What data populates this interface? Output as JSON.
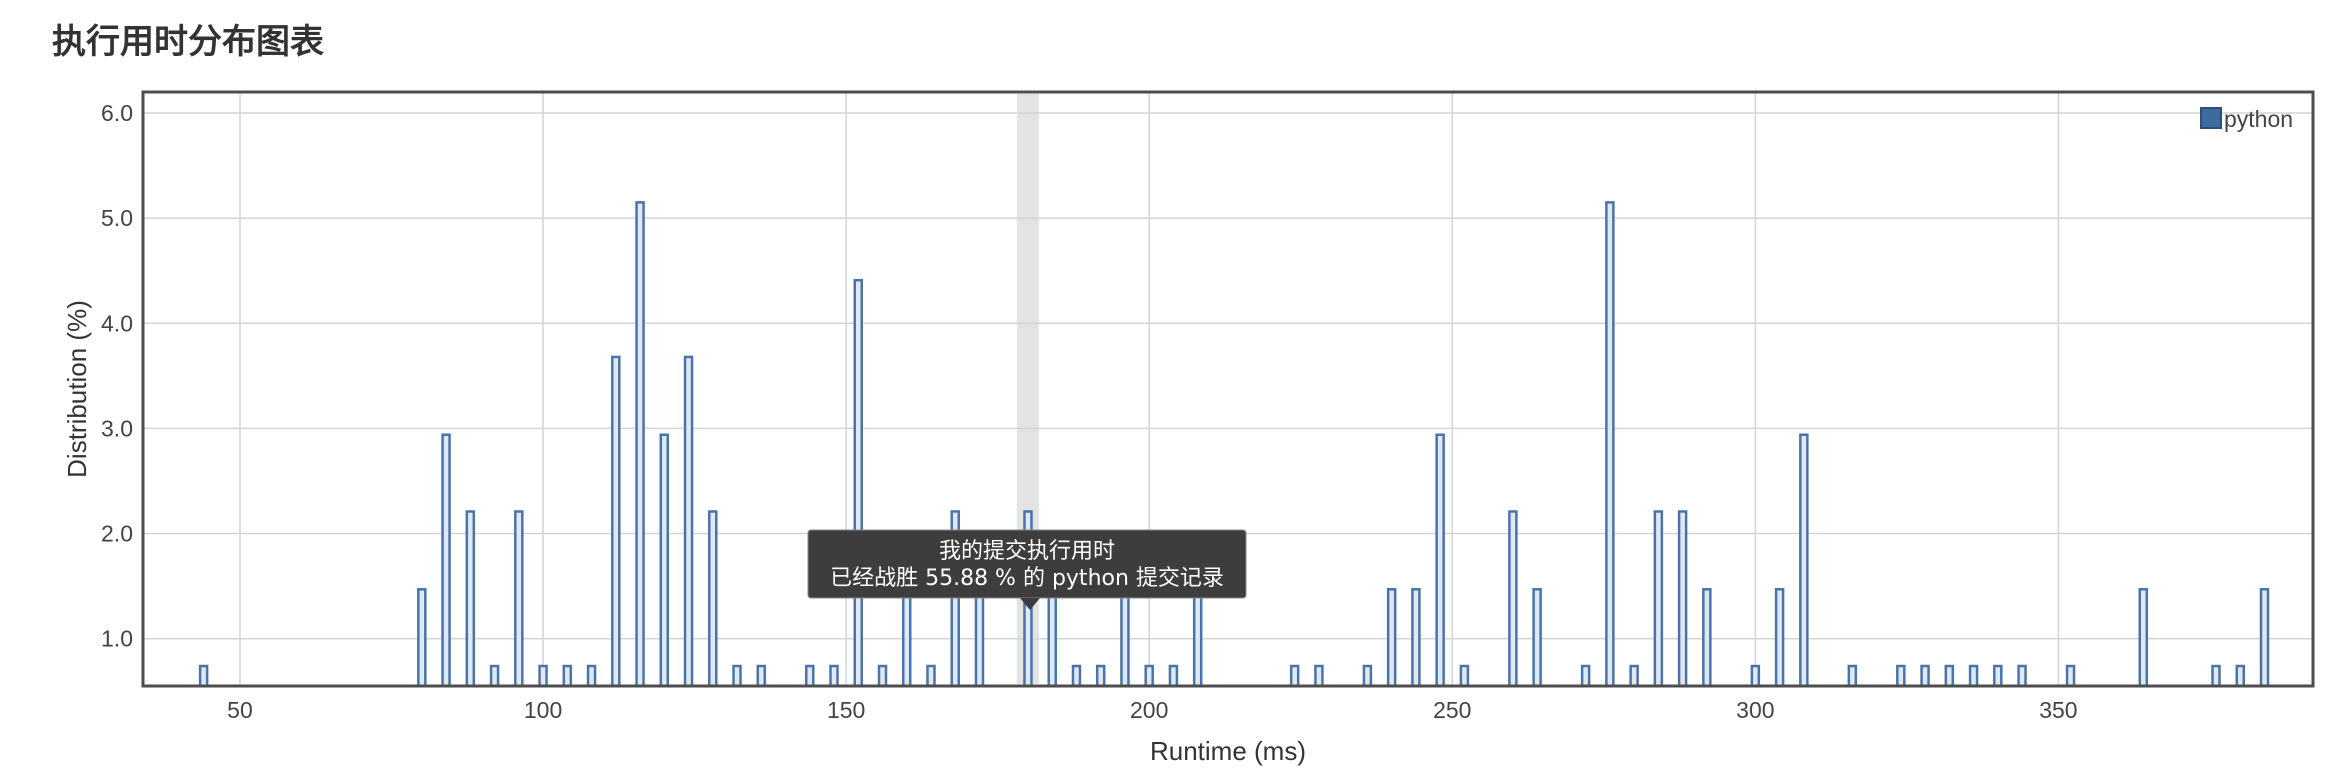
{
  "page": {
    "title": "执行用时分布图表"
  },
  "chart_data": {
    "type": "bar",
    "xlabel": "Runtime (ms)",
    "ylabel": "Distribution (%)",
    "xlim": [
      34,
      392
    ],
    "ylim": [
      0.55,
      6.2
    ],
    "x_ticks": [
      50,
      100,
      150,
      200,
      250,
      300,
      350
    ],
    "y_ticks": [
      1.0,
      2.0,
      3.0,
      4.0,
      5.0,
      6.0
    ],
    "x_tick_labels": [
      "50",
      "100",
      "150",
      "200",
      "250",
      "300",
      "350"
    ],
    "y_tick_labels": [
      "1.0",
      "2.0",
      "3.0",
      "4.0",
      "5.0",
      "6.0"
    ],
    "grid": true,
    "legend_position": "top-right",
    "highlight_x": 180,
    "series": [
      {
        "name": "python",
        "color": "#4a74a8",
        "points": [
          [
            44,
            0.74
          ],
          [
            80,
            1.47
          ],
          [
            84,
            2.94
          ],
          [
            88,
            2.21
          ],
          [
            92,
            0.74
          ],
          [
            96,
            2.21
          ],
          [
            100,
            0.74
          ],
          [
            104,
            0.74
          ],
          [
            108,
            0.74
          ],
          [
            112,
            3.68
          ],
          [
            116,
            5.15
          ],
          [
            120,
            2.94
          ],
          [
            124,
            3.68
          ],
          [
            128,
            2.21
          ],
          [
            132,
            0.74
          ],
          [
            136,
            0.74
          ],
          [
            144,
            0.74
          ],
          [
            148,
            0.74
          ],
          [
            152,
            4.41
          ],
          [
            156,
            0.74
          ],
          [
            160,
            1.47
          ],
          [
            164,
            0.74
          ],
          [
            168,
            2.21
          ],
          [
            172,
            1.47
          ],
          [
            180,
            2.21
          ],
          [
            184,
            1.47
          ],
          [
            188,
            0.74
          ],
          [
            192,
            0.74
          ],
          [
            196,
            1.47
          ],
          [
            200,
            0.74
          ],
          [
            204,
            0.74
          ],
          [
            208,
            1.47
          ],
          [
            224,
            0.74
          ],
          [
            228,
            0.74
          ],
          [
            236,
            0.74
          ],
          [
            240,
            1.47
          ],
          [
            244,
            1.47
          ],
          [
            248,
            2.94
          ],
          [
            252,
            0.74
          ],
          [
            260,
            2.21
          ],
          [
            264,
            1.47
          ],
          [
            272,
            0.74
          ],
          [
            276,
            5.15
          ],
          [
            280,
            0.74
          ],
          [
            284,
            2.21
          ],
          [
            288,
            2.21
          ],
          [
            292,
            1.47
          ],
          [
            300,
            0.74
          ],
          [
            304,
            1.47
          ],
          [
            308,
            2.94
          ],
          [
            316,
            0.74
          ],
          [
            324,
            0.74
          ],
          [
            328,
            0.74
          ],
          [
            332,
            0.74
          ],
          [
            336,
            0.74
          ],
          [
            340,
            0.74
          ],
          [
            344,
            0.74
          ],
          [
            352,
            0.74
          ],
          [
            364,
            1.47
          ],
          [
            376,
            0.74
          ],
          [
            380,
            0.74
          ],
          [
            384,
            1.47
          ]
        ]
      }
    ],
    "tooltip": {
      "line1": "我的提交执行用时",
      "line2": "已经战胜 55.88 % 的 python 提交记录"
    }
  }
}
